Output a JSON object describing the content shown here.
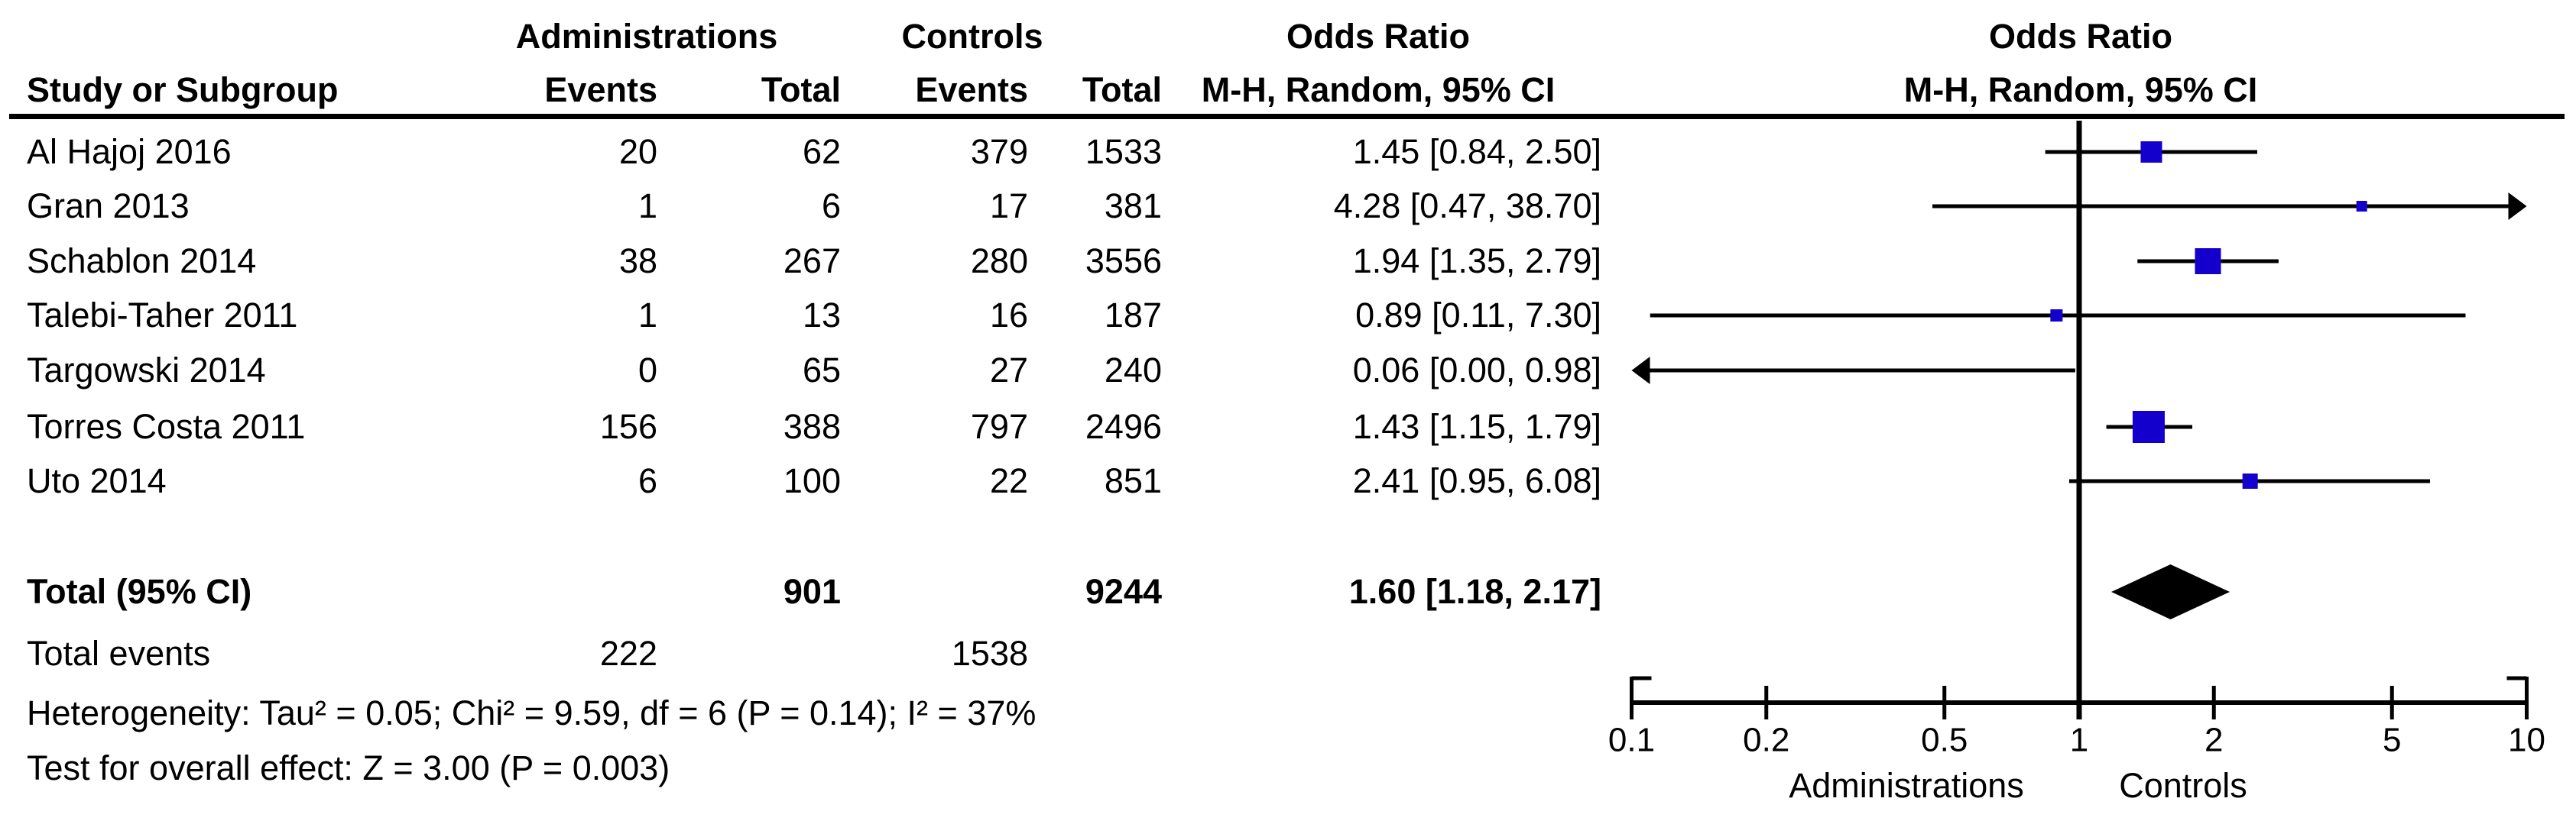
{
  "header": {
    "study_col": "Study or Subgroup",
    "group_admin": "Administrations",
    "group_controls": "Controls",
    "events1": "Events",
    "total1": "Total",
    "events2": "Events",
    "total2": "Total",
    "or_text_title": "Odds Ratio",
    "or_text_method": "M-H, Random, 95% CI",
    "or_plot_title": "Odds Ratio",
    "or_plot_method": "M-H, Random, 95% CI"
  },
  "footer": {
    "heterogeneity": "Heterogeneity: Tau² = 0.05; Chi² = 9.59, df = 6 (P = 0.14); I² = 37%",
    "overall_effect": "Test for overall effect: Z = 3.00 (P = 0.003)"
  },
  "chart_data": {
    "type": "scatter",
    "subtype": "forest-plot-meta-analysis",
    "x_scale": "log10",
    "x_range": [
      0.1,
      10
    ],
    "x_ticks": [
      "0.1",
      "0.2",
      "0.5",
      "1",
      "2",
      "5",
      "10"
    ],
    "axis_left_label": "Administrations",
    "axis_right_label": "Controls",
    "square_color": "#1400cd",
    "line_color": "#000000",
    "studies": [
      {
        "name": "Al Hajoj 2016",
        "events1": "20",
        "total1": "62",
        "events2": "379",
        "total2": "1533",
        "or_text": "1.45 [0.84, 2.50]",
        "or": 1.45,
        "ci_low": 0.84,
        "ci_high": 2.5,
        "marker": 28
      },
      {
        "name": "Gran 2013",
        "events1": "1",
        "total1": "6",
        "events2": "17",
        "total2": "381",
        "or_text": "4.28 [0.47, 38.70]",
        "or": 4.28,
        "ci_low": 0.47,
        "ci_high": 38.7,
        "marker": 14
      },
      {
        "name": "Schablon 2014",
        "events1": "38",
        "total1": "267",
        "events2": "280",
        "total2": "3556",
        "or_text": "1.94 [1.35, 2.79]",
        "or": 1.94,
        "ci_low": 1.35,
        "ci_high": 2.79,
        "marker": 34
      },
      {
        "name": "Talebi-Taher 2011",
        "events1": "1",
        "total1": "13",
        "events2": "16",
        "total2": "187",
        "or_text": "0.89 [0.11, 7.30]",
        "or": 0.89,
        "ci_low": 0.11,
        "ci_high": 7.3,
        "marker": 16
      },
      {
        "name": "Targowski 2014",
        "events1": "0",
        "total1": "65",
        "events2": "27",
        "total2": "240",
        "or_text": "0.06 [0.00, 0.98]",
        "or": 0.06,
        "ci_low": 0.0,
        "ci_high": 0.98,
        "marker": 0
      },
      {
        "name": "Torres Costa 2011",
        "events1": "156",
        "total1": "388",
        "events2": "797",
        "total2": "2496",
        "or_text": "1.43 [1.15, 1.79]",
        "or": 1.43,
        "ci_low": 1.15,
        "ci_high": 1.79,
        "marker": 42
      },
      {
        "name": "Uto 2014",
        "events1": "6",
        "total1": "100",
        "events2": "22",
        "total2": "851",
        "or_text": "2.41 [0.95, 6.08]",
        "or": 2.41,
        "ci_low": 0.95,
        "ci_high": 6.08,
        "marker": 20
      }
    ],
    "total": {
      "label": "Total (95% CI)",
      "total1": "901",
      "total2": "9244",
      "or_text": "1.60 [1.18, 2.17]",
      "or": 1.6,
      "ci_low": 1.18,
      "ci_high": 2.17
    },
    "total_events": {
      "label": "Total events",
      "events1": "222",
      "events2": "1538"
    }
  }
}
